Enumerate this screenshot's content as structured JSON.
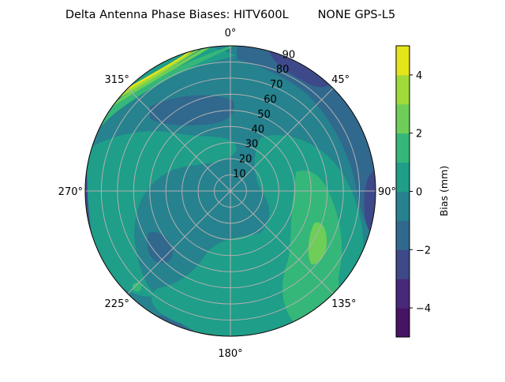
{
  "chart_data": {
    "type": "heatmap",
    "projection": "polar",
    "plot_kind": "filled contour",
    "title": "Delta Antenna Phase Biases: HITV600L        NONE GPS-L5",
    "angular_ticks": [
      "0°",
      "45°",
      "90°",
      "135°",
      "180°",
      "225°",
      "270°",
      "315°"
    ],
    "angular_direction": "clockwise, 0° at top",
    "radial_ticks": [
      "10",
      "20",
      "30",
      "40",
      "50",
      "60",
      "70",
      "80",
      "90"
    ],
    "radial_range": [
      0,
      90
    ],
    "grid": true,
    "colorbar": {
      "label": "Bias (mm)",
      "range": [
        -5,
        5
      ],
      "levels": [
        -5,
        -4,
        -3,
        -2,
        -1,
        0,
        1,
        2,
        3,
        4,
        5
      ],
      "ticks": [
        "−4",
        "−2",
        "0",
        "2",
        "4"
      ],
      "colormap": "viridis",
      "colors": [
        "#471365",
        "#482878",
        "#3e4989",
        "#31688e",
        "#26828e",
        "#1f9e89",
        "#35b779",
        "#6ece58",
        "#a0da39",
        "#e5e419"
      ]
    }
  }
}
